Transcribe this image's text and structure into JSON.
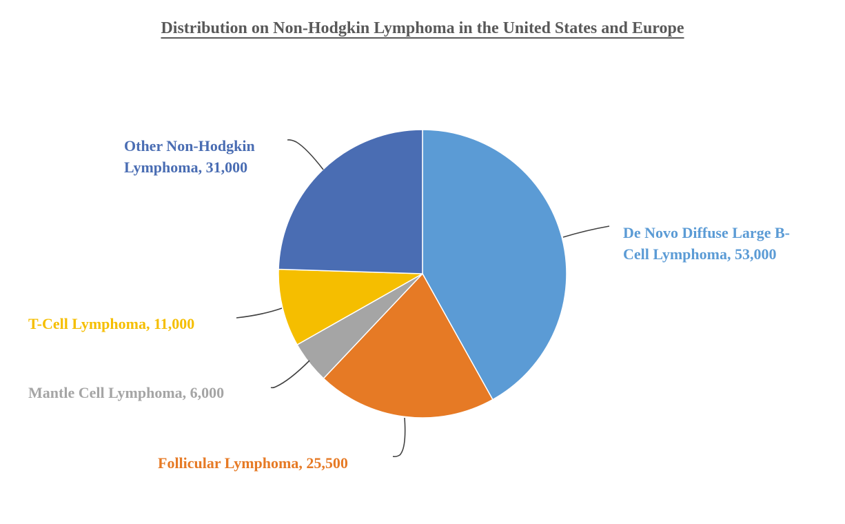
{
  "chart_data": {
    "type": "pie",
    "title": "Distribution on Non-Hodgkin Lymphoma in the United States and Europe",
    "slices": [
      {
        "name": "De Novo Diffuse Large B-Cell Lymphoma",
        "value": 53000,
        "label_lines": [
          "De Novo Diffuse Large B-",
          "Cell Lymphoma, 53,000"
        ],
        "color": "#5B9BD5"
      },
      {
        "name": "Follicular Lymphoma",
        "value": 25500,
        "label_lines": [
          "Follicular Lymphoma, 25,500"
        ],
        "color": "#E67A25"
      },
      {
        "name": "Mantle Cell Lymphoma",
        "value": 6000,
        "label_lines": [
          "Mantle Cell Lymphoma, 6,000"
        ],
        "color": "#A5A5A5"
      },
      {
        "name": "T-Cell Lymphoma",
        "value": 11000,
        "label_lines": [
          "T-Cell Lymphoma, 11,000"
        ],
        "color": "#F5BE00"
      },
      {
        "name": "Other Non-Hodgkin Lymphoma",
        "value": 31000,
        "label_lines": [
          "Other Non-Hodgkin",
          "Lymphoma, 31,000"
        ],
        "color": "#4A6DB3"
      }
    ],
    "start_angle": "12 o'clock",
    "direction": "clockwise",
    "legend": "none",
    "data_labels": "outside with leader lines"
  }
}
